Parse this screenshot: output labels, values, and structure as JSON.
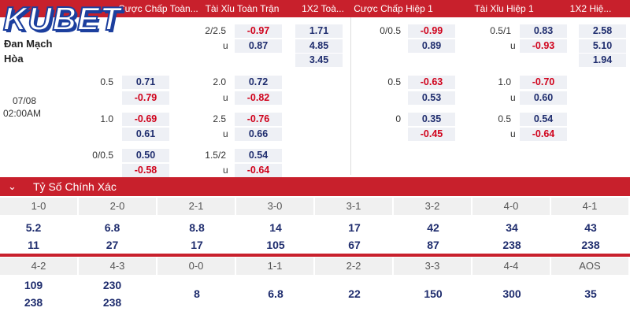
{
  "header": {
    "logo": "KUBET",
    "columns": [
      "Cược Chấp Toàn...",
      "Tài Xỉu Toàn Trận",
      "1X2 Toà...",
      "Cược Chấp Hiệp 1",
      "Tài Xỉu Hiệp 1",
      "1X2 Hiệ..."
    ]
  },
  "match": {
    "teams": [
      "Đan Mạch",
      "Hòa"
    ],
    "date": "07/08",
    "time": "02:00AM"
  },
  "odds": {
    "under": "u",
    "groups": [
      {
        "ft_ou": {
          "line": "2/2.5",
          "values": [
            "-0.97",
            "0.87"
          ]
        },
        "ft_1x2": {
          "values": [
            "1.71",
            "4.85",
            "3.45"
          ]
        },
        "ht_hcp": {
          "line": "0/0.5",
          "values": [
            "-0.99",
            "0.89"
          ]
        },
        "ht_ou": {
          "line": "0.5/1",
          "values": [
            "0.83",
            "-0.93"
          ]
        },
        "ht_1x2": {
          "values": [
            "2.58",
            "5.10",
            "1.94"
          ]
        }
      },
      {
        "ft_hcp": {
          "line": "0.5",
          "values": [
            "0.71",
            "-0.79"
          ]
        },
        "ft_ou": {
          "line": "2.0",
          "values": [
            "0.72",
            "-0.82"
          ]
        },
        "ht_hcp": {
          "line": "0.5",
          "values": [
            "-0.63",
            "0.53"
          ]
        },
        "ht_ou": {
          "line": "1.0",
          "values": [
            "-0.70",
            "0.60"
          ]
        }
      },
      {
        "ft_hcp": {
          "line": "1.0",
          "values": [
            "-0.69",
            "0.61"
          ]
        },
        "ft_ou": {
          "line": "2.5",
          "values": [
            "-0.76",
            "0.66"
          ]
        },
        "ht_hcp": {
          "line": "0",
          "values": [
            "0.35",
            "-0.45"
          ]
        },
        "ht_ou": {
          "line": "0.5",
          "values": [
            "0.54",
            "-0.64"
          ]
        }
      },
      {
        "ft_hcp": {
          "line": "0/0.5",
          "values": [
            "0.50",
            "-0.58"
          ]
        },
        "ft_ou": {
          "line": "1.5/2",
          "values": [
            "0.54",
            "-0.64"
          ]
        }
      }
    ]
  },
  "correct_score": {
    "title": "Tỷ Số Chính Xác",
    "rows": [
      [
        {
          "score": "1-0",
          "values": [
            "5.2",
            "11"
          ]
        },
        {
          "score": "2-0",
          "values": [
            "6.8",
            "27"
          ]
        },
        {
          "score": "2-1",
          "values": [
            "8.8",
            "17"
          ]
        },
        {
          "score": "3-0",
          "values": [
            "14",
            "105"
          ]
        },
        {
          "score": "3-1",
          "values": [
            "17",
            "67"
          ]
        },
        {
          "score": "3-2",
          "values": [
            "42",
            "87"
          ]
        },
        {
          "score": "4-0",
          "values": [
            "34",
            "238"
          ]
        },
        {
          "score": "4-1",
          "values": [
            "43",
            "238"
          ]
        }
      ],
      [
        {
          "score": "4-2",
          "values": [
            "109",
            "238"
          ]
        },
        {
          "score": "4-3",
          "values": [
            "230",
            "238"
          ]
        },
        {
          "score": "0-0",
          "values": [
            "8"
          ]
        },
        {
          "score": "1-1",
          "values": [
            "6.8"
          ]
        },
        {
          "score": "2-2",
          "values": [
            "22"
          ]
        },
        {
          "score": "3-3",
          "values": [
            "150"
          ]
        },
        {
          "score": "4-4",
          "values": [
            "300"
          ]
        },
        {
          "score": "AOS",
          "values": [
            "35"
          ]
        }
      ]
    ]
  }
}
